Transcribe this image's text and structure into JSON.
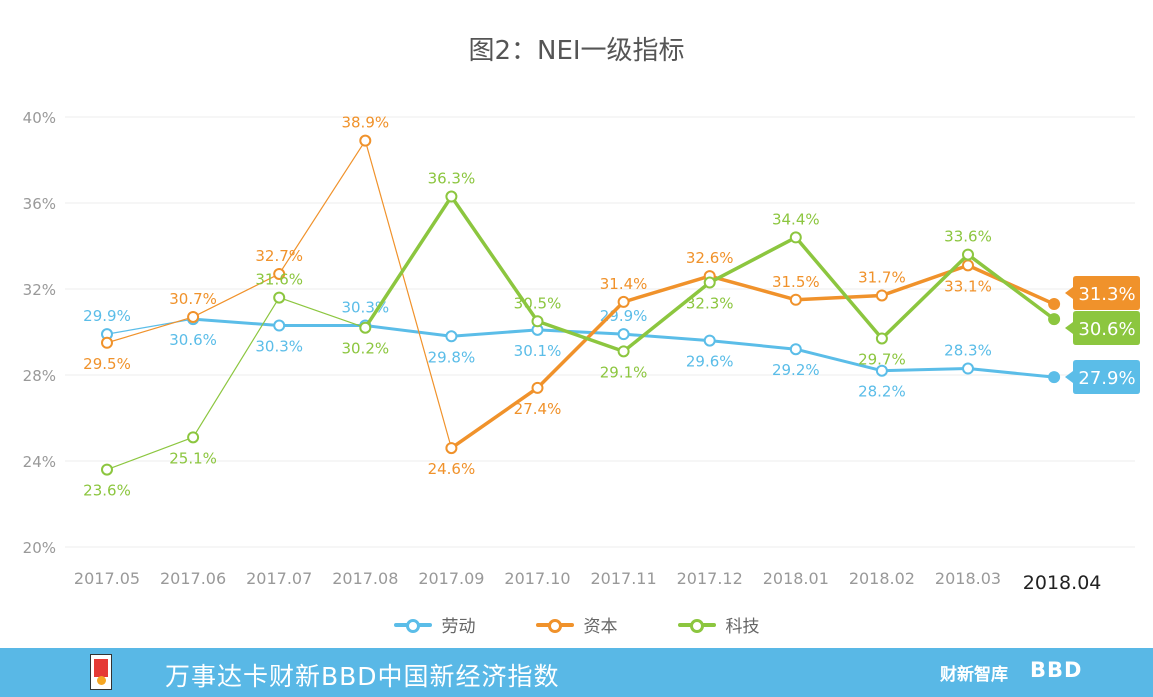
{
  "chart_data": {
    "type": "line",
    "title": "图2：NEI一级指标",
    "categories": [
      "2017.05",
      "2017.06",
      "2017.07",
      "2017.08",
      "2017.09",
      "2017.10",
      "2017.11",
      "2017.12",
      "2018.01",
      "2018.02",
      "2018.03",
      "2018.04"
    ],
    "ylim": [
      20,
      40
    ],
    "yticks": [
      20,
      24,
      28,
      32,
      36,
      40
    ],
    "ytick_labels": [
      "20%",
      "24%",
      "28%",
      "32%",
      "36%",
      "40%"
    ],
    "highlight_category": "2018.04",
    "legend_position": "bottom",
    "grid": true,
    "series": [
      {
        "name": "劳动",
        "color": "#5bbde8",
        "values": [
          29.9,
          30.6,
          30.3,
          30.3,
          29.8,
          30.1,
          29.9,
          29.6,
          29.2,
          28.2,
          28.3,
          27.9
        ],
        "labels": [
          "29.9%",
          "30.6%",
          "30.3%",
          "30.3%",
          "29.8%",
          "30.1%",
          "29.9%",
          "29.6%",
          "29.2%",
          "28.2%",
          "28.3%",
          "27.9%"
        ],
        "end_label": "27.9%"
      },
      {
        "name": "资本",
        "color": "#f0922b",
        "values": [
          29.5,
          30.7,
          32.7,
          38.9,
          24.6,
          27.4,
          31.4,
          32.6,
          31.5,
          31.7,
          33.1,
          31.3
        ],
        "labels": [
          "29.5%",
          "30.7%",
          "32.7%",
          "38.9%",
          "24.6%",
          "27.4%",
          "31.4%",
          "32.6%",
          "31.5%",
          "31.7%",
          "33.1%",
          "31.3%"
        ],
        "end_label": "31.3%"
      },
      {
        "name": "科技",
        "color": "#8cc63f",
        "values": [
          23.6,
          25.1,
          31.6,
          30.2,
          36.3,
          30.5,
          29.1,
          32.3,
          34.4,
          29.7,
          33.6,
          30.6
        ],
        "labels": [
          "23.6%",
          "25.1%",
          "31.6%",
          "30.2%",
          "36.3%",
          "30.5%",
          "29.1%",
          "32.3%",
          "34.4%",
          "29.7%",
          "33.6%",
          "30.6%"
        ],
        "end_label": "30.6%"
      }
    ]
  },
  "footer": {
    "text": "万事达卡财新BBD中国新经济指数",
    "brand_caixin": "财新智库",
    "brand_bbd": "BBD"
  }
}
